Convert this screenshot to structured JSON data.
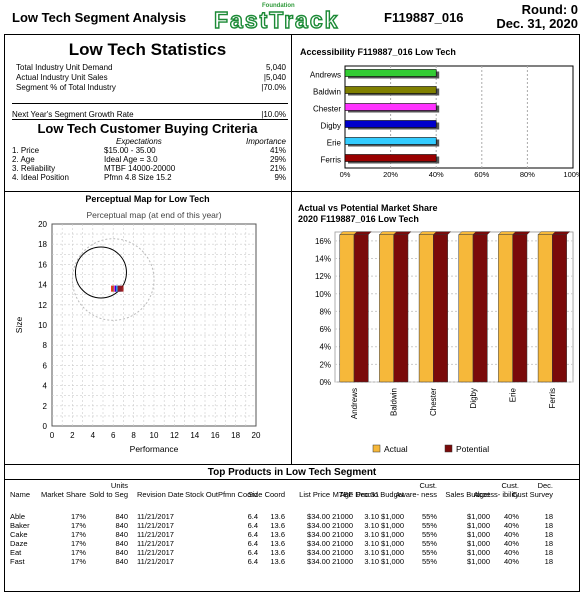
{
  "header": {
    "title": "Low Tech Segment Analysis",
    "logo_top": "Foundation",
    "logo": "FastTrack",
    "company": "F119887_016",
    "round": "Round: 0",
    "date": "Dec. 31, 2020"
  },
  "stats": {
    "title": "Low Tech Statistics",
    "rows": [
      {
        "label": "Total Industry Unit Demand",
        "value": "5,040"
      },
      {
        "label": "Actual Industry Unit Sales",
        "value": "|5,040"
      },
      {
        "label": "Segment % of Total Industry",
        "value": "|70.0%"
      }
    ],
    "growth": {
      "label": "Next Year's Segment Growth Rate",
      "value": "|10.0%"
    }
  },
  "criteria": {
    "title": "Low Tech Customer Buying Criteria",
    "col_expect": "Expectations",
    "col_importance": "Importance",
    "rows": [
      {
        "name": "1. Price",
        "expect": "$15.00 - 35.00",
        "importance": "41%"
      },
      {
        "name": "2. Age",
        "expect": "Ideal Age = 3.0",
        "importance": "29%"
      },
      {
        "name": "3. Reliability",
        "expect": "MTBF 14000-20000",
        "importance": "21%"
      },
      {
        "name": "4. Ideal Position",
        "expect": "Pfmn 4.8 Size 15.2",
        "importance": "9%"
      }
    ]
  },
  "accessibility": {
    "title": "Accessibility F119887_016 Low Tech",
    "chart_data": {
      "type": "bar",
      "categories": [
        "Andrews",
        "Baldwin",
        "Chester",
        "Digby",
        "Erie",
        "Ferris"
      ],
      "values": [
        40,
        40,
        40,
        40,
        40,
        40
      ],
      "xlim": [
        0,
        100
      ],
      "ticks": [
        "0%",
        "20%",
        "40%",
        "60%",
        "80%",
        "100%"
      ],
      "colors": [
        "#33cc33",
        "#808000",
        "#ff33ff",
        "#0000cc",
        "#33ccff",
        "#990000"
      ]
    }
  },
  "perceptual": {
    "title": "Perceptual Map for Low Tech",
    "chart_data": {
      "type": "scatter",
      "title": "Perceptual map (at end of this year)",
      "xlabel": "Performance",
      "ylabel": "Size",
      "xlim": [
        0,
        20
      ],
      "ylim": [
        0,
        20
      ],
      "xticks": [
        "0",
        "2",
        "4",
        "6",
        "8",
        "10",
        "12",
        "14",
        "16",
        "18",
        "20"
      ],
      "yticks": [
        "0",
        "2",
        "4",
        "6",
        "8",
        "10",
        "12",
        "14",
        "16",
        "18",
        "20"
      ],
      "ideal_spot": {
        "x": 4.8,
        "y": 15.2
      },
      "outer_circle_center": {
        "x": 6.0,
        "y": 14.5
      },
      "products": [
        {
          "name": "Able",
          "x": 6.4,
          "y": 13.6,
          "color": "#ff0000"
        },
        {
          "name": "Baker",
          "x": 6.4,
          "y": 13.6,
          "color": "#808000"
        },
        {
          "name": "Cake",
          "x": 6.4,
          "y": 13.6,
          "color": "#ff33ff"
        },
        {
          "name": "Daze",
          "x": 6.4,
          "y": 13.6,
          "color": "#0000cc"
        },
        {
          "name": "Eat",
          "x": 6.4,
          "y": 13.6,
          "color": "#33ccff"
        },
        {
          "name": "Fast",
          "x": 6.4,
          "y": 13.6,
          "color": "#990000"
        }
      ]
    }
  },
  "share": {
    "title1": "Actual vs Potential Market Share",
    "title2": "2020 F119887_016 Low Tech",
    "chart_data": {
      "type": "bar",
      "categories": [
        "Andrews",
        "Baldwin",
        "Chester",
        "Digby",
        "Erie",
        "Ferris"
      ],
      "series": [
        {
          "name": "Actual",
          "values": [
            16.7,
            16.7,
            16.7,
            16.7,
            16.7,
            16.7
          ],
          "color": "#f6b83a"
        },
        {
          "name": "Potential",
          "values": [
            16.7,
            16.7,
            16.7,
            16.7,
            16.7,
            16.7
          ],
          "color": "#7a0a0a"
        }
      ],
      "ylim": [
        0,
        17
      ],
      "yticks": [
        "0%",
        "2%",
        "4%",
        "6%",
        "8%",
        "10%",
        "12%",
        "14%",
        "16%"
      ]
    }
  },
  "top_products": {
    "title": "Top Products in Low Tech Segment",
    "headers": [
      [
        "",
        "Name"
      ],
      [
        "",
        "Market Share"
      ],
      [
        "Units",
        "Sold to Seg"
      ],
      [
        "",
        "Revision Date"
      ],
      [
        "",
        "Stock Out"
      ],
      [
        "",
        "Pfmn Coord"
      ],
      [
        "",
        "Size Coord"
      ],
      [
        "",
        "List Price"
      ],
      [
        "",
        "MTBF"
      ],
      [
        "",
        "Age Dec.31"
      ],
      [
        "",
        "Promo Budget"
      ],
      [
        "Cust.",
        "Aware- ness"
      ],
      [
        "",
        "Sales Budget"
      ],
      [
        "Cust.",
        "Access- ibility"
      ],
      [
        "Dec.",
        "Cust Survey"
      ]
    ],
    "rows": [
      [
        "Able",
        "17%",
        "840",
        "11/21/2017",
        "",
        "6.4",
        "13.6",
        "$34.00",
        "21000",
        "3.10",
        "$1,000",
        "55%",
        "$1,000",
        "40%",
        "18"
      ],
      [
        "Baker",
        "17%",
        "840",
        "11/21/2017",
        "",
        "6.4",
        "13.6",
        "$34.00",
        "21000",
        "3.10",
        "$1,000",
        "55%",
        "$1,000",
        "40%",
        "18"
      ],
      [
        "Cake",
        "17%",
        "840",
        "11/21/2017",
        "",
        "6.4",
        "13.6",
        "$34.00",
        "21000",
        "3.10",
        "$1,000",
        "55%",
        "$1,000",
        "40%",
        "18"
      ],
      [
        "Daze",
        "17%",
        "840",
        "11/21/2017",
        "",
        "6.4",
        "13.6",
        "$34.00",
        "21000",
        "3.10",
        "$1,000",
        "55%",
        "$1,000",
        "40%",
        "18"
      ],
      [
        "Eat",
        "17%",
        "840",
        "11/21/2017",
        "",
        "6.4",
        "13.6",
        "$34.00",
        "21000",
        "3.10",
        "$1,000",
        "55%",
        "$1,000",
        "40%",
        "18"
      ],
      [
        "Fast",
        "17%",
        "840",
        "11/21/2017",
        "",
        "6.4",
        "13.6",
        "$34.00",
        "21000",
        "3.10",
        "$1,000",
        "55%",
        "$1,000",
        "40%",
        "18"
      ]
    ]
  }
}
